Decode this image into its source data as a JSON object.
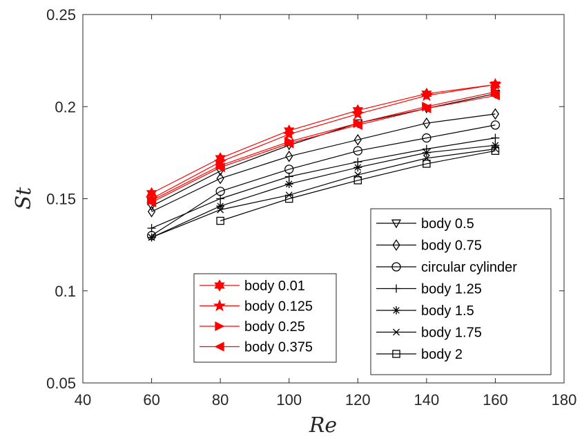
{
  "chart_data": {
    "type": "line",
    "xlabel": "Re",
    "ylabel": "St",
    "xlim": [
      40,
      180
    ],
    "ylim": [
      0.05,
      0.25
    ],
    "xticks": [
      40,
      60,
      80,
      100,
      120,
      140,
      160,
      180
    ],
    "yticks": [
      "0.05",
      "0.1",
      "0.15",
      "0.2",
      "0.25"
    ],
    "grid": false,
    "series": [
      {
        "name": "body 0.01",
        "color": "#ff0000",
        "marker": "hexagram",
        "x": [
          60,
          80,
          100,
          120,
          140,
          160
        ],
        "y": [
          0.153,
          0.172,
          0.187,
          0.198,
          0.207,
          0.212
        ]
      },
      {
        "name": "body 0.125",
        "color": "#ff0000",
        "marker": "pentagram",
        "x": [
          60,
          80,
          100,
          120,
          140,
          160
        ],
        "y": [
          0.15,
          0.17,
          0.185,
          0.196,
          0.206,
          0.212
        ]
      },
      {
        "name": "body 0.25",
        "color": "#ff0000",
        "marker": "triangle-right",
        "x": [
          60,
          80,
          100,
          120,
          140,
          160
        ],
        "y": [
          0.149,
          0.168,
          0.181,
          0.191,
          0.2,
          0.208
        ]
      },
      {
        "name": "body 0.375",
        "color": "#ff0000",
        "marker": "triangle-left",
        "x": [
          60,
          80,
          100,
          120,
          140,
          160
        ],
        "y": [
          0.148,
          0.167,
          0.18,
          0.19,
          0.199,
          0.206
        ]
      },
      {
        "name": "body 0.5",
        "color": "#000000",
        "marker": "triangle-down",
        "x": [
          60,
          80,
          100,
          120,
          140,
          160
        ],
        "y": [
          0.146,
          0.165,
          0.179,
          0.191,
          0.199,
          0.207
        ]
      },
      {
        "name": "body 0.75",
        "color": "#000000",
        "marker": "diamond",
        "x": [
          60,
          80,
          100,
          120,
          140,
          160
        ],
        "y": [
          0.143,
          0.161,
          0.173,
          0.182,
          0.191,
          0.196
        ]
      },
      {
        "name": "circular cylinder",
        "color": "#000000",
        "marker": "circle",
        "x": [
          60,
          80,
          100,
          120,
          140,
          160
        ],
        "y": [
          0.13,
          0.154,
          0.166,
          0.176,
          0.183,
          0.19
        ]
      },
      {
        "name": "body 1.25",
        "color": "#000000",
        "marker": "plus",
        "x": [
          60,
          80,
          100,
          120,
          140,
          160
        ],
        "y": [
          0.134,
          0.15,
          0.162,
          0.17,
          0.177,
          0.183
        ]
      },
      {
        "name": "body 1.5",
        "color": "#000000",
        "marker": "asterisk",
        "x": [
          60,
          80,
          100,
          120,
          140,
          160
        ],
        "y": [
          0.129,
          0.146,
          0.158,
          0.167,
          0.175,
          0.179
        ]
      },
      {
        "name": "body 1.75",
        "color": "#000000",
        "marker": "x",
        "x": [
          60,
          80,
          100,
          120,
          140,
          160
        ],
        "y": [
          0.129,
          0.144,
          0.152,
          0.163,
          0.172,
          0.177
        ]
      },
      {
        "name": "body 2",
        "color": "#000000",
        "marker": "square",
        "x": [
          80,
          100,
          120,
          140,
          160
        ],
        "y": [
          0.138,
          0.15,
          0.16,
          0.169,
          0.176
        ]
      }
    ],
    "legends": [
      {
        "position": "lower-center",
        "entries": [
          "body 0.01",
          "body 0.125",
          "body 0.25",
          "body 0.375"
        ]
      },
      {
        "position": "lower-right",
        "entries": [
          "body 0.5",
          "body 0.75",
          "circular cylinder",
          "body 1.25",
          "body 1.5",
          "body 1.75",
          "body 2"
        ]
      }
    ]
  }
}
